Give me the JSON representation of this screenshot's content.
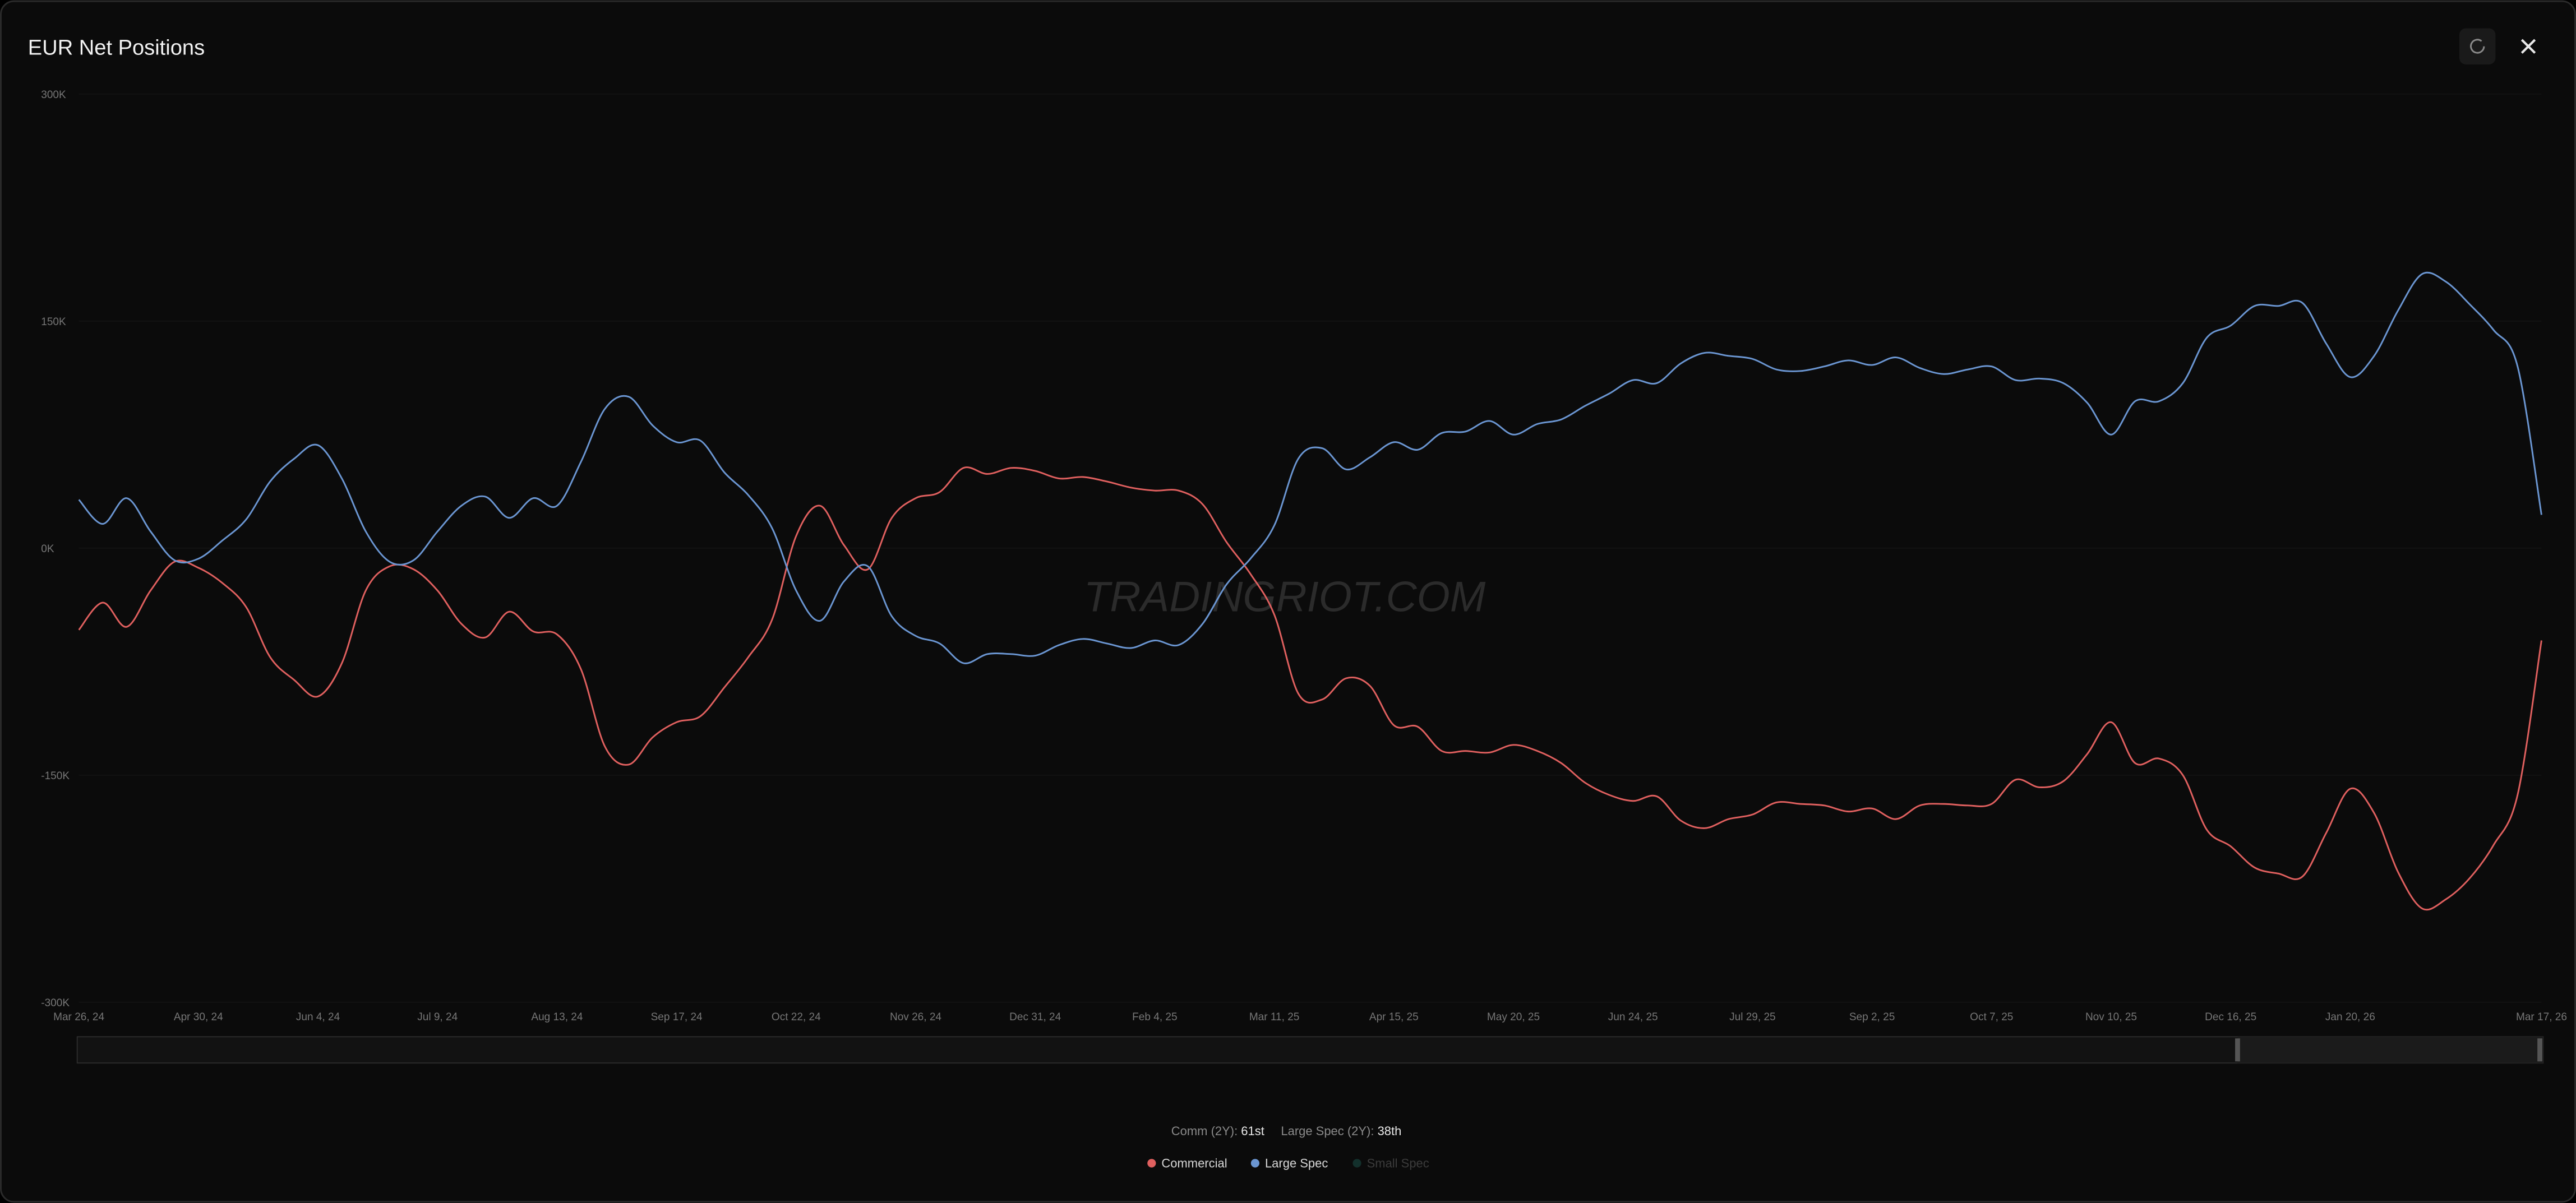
{
  "header": {
    "title": "EUR  Net Positions"
  },
  "watermark": "TRADINGRIOT.COM",
  "stats": [
    {
      "label": "Comm (2Y):",
      "value": "61st"
    },
    {
      "label": "Large Spec (2Y):",
      "value": "38th"
    }
  ],
  "chart_data": {
    "type": "line",
    "categories": [
      "Mar 26, 24",
      null,
      null,
      null,
      null,
      "Apr 30, 24",
      null,
      null,
      null,
      null,
      "Jun 4, 24",
      null,
      null,
      null,
      null,
      "Jul 9, 24",
      null,
      null,
      null,
      null,
      "Aug 13, 24",
      null,
      null,
      null,
      null,
      "Sep 17, 24",
      null,
      null,
      null,
      null,
      "Oct 22, 24",
      null,
      null,
      null,
      null,
      "Nov 26, 24",
      null,
      null,
      null,
      null,
      "Dec 31, 24",
      null,
      null,
      null,
      null,
      "Feb 4, 25",
      null,
      null,
      null,
      null,
      "Mar 11, 25",
      null,
      null,
      null,
      null,
      "Apr 15, 25",
      null,
      null,
      null,
      null,
      "May 20, 25",
      null,
      null,
      null,
      null,
      "Jun 24, 25",
      null,
      null,
      null,
      null,
      "Jul 29, 25",
      null,
      null,
      null,
      null,
      "Sep 2, 25",
      null,
      null,
      null,
      null,
      "Oct 7, 25",
      null,
      null,
      null,
      null,
      "Nov 10, 25",
      null,
      null,
      null,
      null,
      "Dec 16, 25",
      null,
      null,
      null,
      null,
      "Jan 20, 26",
      null,
      null,
      null,
      null,
      null,
      null,
      null,
      "Mar 17, 26"
    ],
    "series": [
      {
        "name": "Commercial",
        "color": "#e0605f",
        "values": [
          -54,
          -36,
          -52,
          -28,
          -9,
          -13,
          -23,
          -39,
          -72,
          -87,
          -98,
          -76,
          -28,
          -12,
          -14,
          -28,
          -50,
          -59,
          -42,
          -55,
          -57,
          -80,
          -131,
          -143,
          -125,
          -115,
          -111,
          -92,
          -72,
          -47,
          8,
          28,
          2,
          -14,
          20,
          33,
          37,
          53,
          49,
          53,
          51,
          46,
          47,
          44,
          40,
          38,
          38,
          29,
          4,
          -17,
          -44,
          -96,
          -100,
          -86,
          -91,
          -117,
          -118,
          -134,
          -134,
          -135,
          -130,
          -134,
          -142,
          -155,
          -163,
          -167,
          -164,
          -180,
          -185,
          -179,
          -176,
          -168,
          -169,
          -170,
          -174,
          -172,
          -179,
          -170,
          -169,
          -170,
          -169,
          -153,
          -158,
          -154,
          -136,
          -115,
          -142,
          -139,
          -150,
          -186,
          -197,
          -211,
          -215,
          -217,
          -188,
          -159,
          -175,
          -214,
          -238,
          -232,
          -218,
          -196,
          -163,
          -61
        ]
      },
      {
        "name": "Large Spec",
        "color": "#6b96d2",
        "values": [
          32,
          16,
          33,
          11,
          -8,
          -7,
          5,
          19,
          44,
          59,
          68,
          46,
          11,
          -9,
          -8,
          11,
          28,
          34,
          20,
          33,
          28,
          57,
          92,
          100,
          81,
          70,
          71,
          50,
          35,
          13,
          -28,
          -48,
          -22,
          -12,
          -45,
          -58,
          -63,
          -76,
          -70,
          -70,
          -71,
          -64,
          -60,
          -63,
          -66,
          -61,
          -64,
          -50,
          -24,
          -7,
          15,
          59,
          66,
          52,
          60,
          70,
          65,
          76,
          77,
          84,
          75,
          82,
          85,
          94,
          102,
          111,
          109,
          122,
          129,
          127,
          125,
          118,
          117,
          120,
          124,
          121,
          126,
          119,
          115,
          118,
          120,
          111,
          112,
          109,
          96,
          75,
          97,
          97,
          109,
          139,
          147,
          160,
          160,
          162,
          135,
          113,
          127,
          157,
          181,
          176,
          161,
          144,
          120,
          22
        ]
      },
      {
        "name": "Small Spec",
        "color": "#1e5e56",
        "hidden": true
      }
    ],
    "ylim": [
      -300,
      300
    ],
    "yticks": [
      {
        "value": 300,
        "label": "300K"
      },
      {
        "value": 150,
        "label": "150K"
      },
      {
        "value": 0,
        "label": "0K"
      },
      {
        "value": -150,
        "label": "-150K"
      },
      {
        "value": -300,
        "label": "-300K"
      }
    ]
  }
}
